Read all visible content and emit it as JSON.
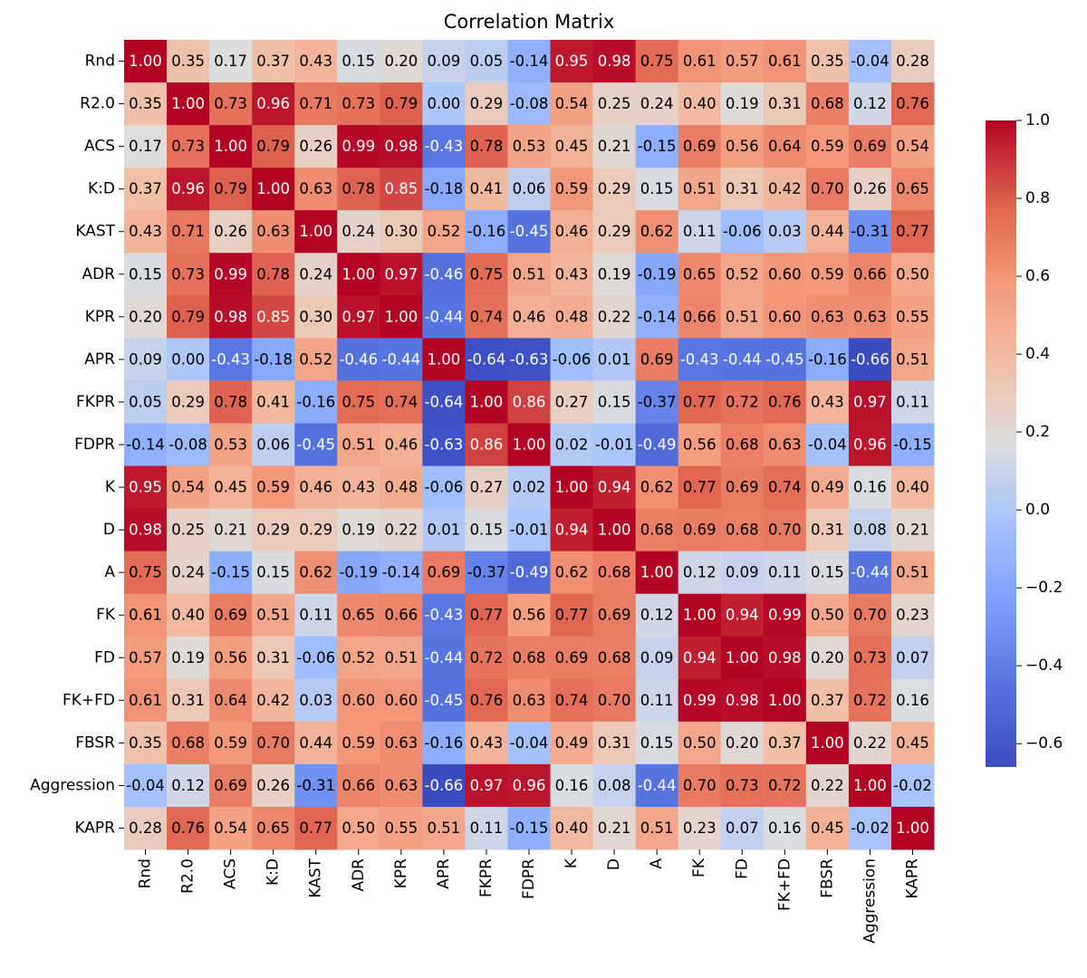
{
  "chart_data": {
    "type": "heatmap",
    "title": "Correlation Matrix",
    "categories": [
      "Rnd",
      "R2.0",
      "ACS",
      "K:D",
      "KAST",
      "ADR",
      "KPR",
      "APR",
      "FKPR",
      "FDPR",
      "K",
      "D",
      "A",
      "FK",
      "FD",
      "FK+FD",
      "FBSR",
      "Aggression",
      "KAPR"
    ],
    "values": [
      [
        1.0,
        0.35,
        0.17,
        0.37,
        0.43,
        0.15,
        0.2,
        0.09,
        0.05,
        -0.14,
        0.95,
        0.98,
        0.75,
        0.61,
        0.57,
        0.61,
        0.35,
        -0.04,
        0.28
      ],
      [
        0.35,
        1.0,
        0.73,
        0.96,
        0.71,
        0.73,
        0.79,
        0.0,
        0.29,
        -0.08,
        0.54,
        0.25,
        0.24,
        0.4,
        0.19,
        0.31,
        0.68,
        0.12,
        0.76
      ],
      [
        0.17,
        0.73,
        1.0,
        0.79,
        0.26,
        0.99,
        0.98,
        -0.43,
        0.78,
        0.53,
        0.45,
        0.21,
        -0.15,
        0.69,
        0.56,
        0.64,
        0.59,
        0.69,
        0.54
      ],
      [
        0.37,
        0.96,
        0.79,
        1.0,
        0.63,
        0.78,
        0.85,
        -0.18,
        0.41,
        0.06,
        0.59,
        0.29,
        0.15,
        0.51,
        0.31,
        0.42,
        0.7,
        0.26,
        0.65
      ],
      [
        0.43,
        0.71,
        0.26,
        0.63,
        1.0,
        0.24,
        0.3,
        0.52,
        -0.16,
        -0.45,
        0.46,
        0.29,
        0.62,
        0.11,
        -0.06,
        0.03,
        0.44,
        -0.31,
        0.77
      ],
      [
        0.15,
        0.73,
        0.99,
        0.78,
        0.24,
        1.0,
        0.97,
        -0.46,
        0.75,
        0.51,
        0.43,
        0.19,
        -0.19,
        0.65,
        0.52,
        0.6,
        0.59,
        0.66,
        0.5
      ],
      [
        0.2,
        0.79,
        0.98,
        0.85,
        0.3,
        0.97,
        1.0,
        -0.44,
        0.74,
        0.46,
        0.48,
        0.22,
        -0.14,
        0.66,
        0.51,
        0.6,
        0.63,
        0.63,
        0.55
      ],
      [
        0.09,
        0.0,
        -0.43,
        -0.18,
        0.52,
        -0.46,
        -0.44,
        1.0,
        -0.64,
        -0.63,
        -0.06,
        0.01,
        0.69,
        -0.43,
        -0.44,
        -0.45,
        -0.16,
        -0.66,
        0.51
      ],
      [
        0.05,
        0.29,
        0.78,
        0.41,
        -0.16,
        0.75,
        0.74,
        -0.64,
        1.0,
        0.86,
        0.27,
        0.15,
        -0.37,
        0.77,
        0.72,
        0.76,
        0.43,
        0.97,
        0.11
      ],
      [
        -0.14,
        -0.08,
        0.53,
        0.06,
        -0.45,
        0.51,
        0.46,
        -0.63,
        0.86,
        1.0,
        0.02,
        -0.01,
        -0.49,
        0.56,
        0.68,
        0.63,
        -0.04,
        0.96,
        -0.15
      ],
      [
        0.95,
        0.54,
        0.45,
        0.59,
        0.46,
        0.43,
        0.48,
        -0.06,
        0.27,
        0.02,
        1.0,
        0.94,
        0.62,
        0.77,
        0.69,
        0.74,
        0.49,
        0.16,
        0.4
      ],
      [
        0.98,
        0.25,
        0.21,
        0.29,
        0.29,
        0.19,
        0.22,
        0.01,
        0.15,
        -0.01,
        0.94,
        1.0,
        0.68,
        0.69,
        0.68,
        0.7,
        0.31,
        0.08,
        0.21
      ],
      [
        0.75,
        0.24,
        -0.15,
        0.15,
        0.62,
        -0.19,
        -0.14,
        0.69,
        -0.37,
        -0.49,
        0.62,
        0.68,
        1.0,
        0.12,
        0.09,
        0.11,
        0.15,
        -0.44,
        0.51
      ],
      [
        0.61,
        0.4,
        0.69,
        0.51,
        0.11,
        0.65,
        0.66,
        -0.43,
        0.77,
        0.56,
        0.77,
        0.69,
        0.12,
        1.0,
        0.94,
        0.99,
        0.5,
        0.7,
        0.23
      ],
      [
        0.57,
        0.19,
        0.56,
        0.31,
        -0.06,
        0.52,
        0.51,
        -0.44,
        0.72,
        0.68,
        0.69,
        0.68,
        0.09,
        0.94,
        1.0,
        0.98,
        0.2,
        0.73,
        0.07
      ],
      [
        0.61,
        0.31,
        0.64,
        0.42,
        0.03,
        0.6,
        0.6,
        -0.45,
        0.76,
        0.63,
        0.74,
        0.7,
        0.11,
        0.99,
        0.98,
        1.0,
        0.37,
        0.72,
        0.16
      ],
      [
        0.35,
        0.68,
        0.59,
        0.7,
        0.44,
        0.59,
        0.63,
        -0.16,
        0.43,
        -0.04,
        0.49,
        0.31,
        0.15,
        0.5,
        0.2,
        0.37,
        1.0,
        0.22,
        0.45
      ],
      [
        -0.04,
        0.12,
        0.69,
        0.26,
        -0.31,
        0.66,
        0.63,
        -0.66,
        0.97,
        0.96,
        0.16,
        0.08,
        -0.44,
        0.7,
        0.73,
        0.72,
        0.22,
        1.0,
        -0.02
      ],
      [
        0.28,
        0.76,
        0.54,
        0.65,
        0.77,
        0.5,
        0.55,
        0.51,
        0.11,
        -0.15,
        0.4,
        0.21,
        0.51,
        0.23,
        0.07,
        0.16,
        0.45,
        -0.02,
        1.0
      ]
    ],
    "value_labels": [
      [
        "1.00",
        "0.35",
        "0.17",
        "0.37",
        "0.43",
        "0.15",
        "0.20",
        "0.09",
        "0.05",
        "-0.14",
        "0.95",
        "0.98",
        "0.75",
        "0.61",
        "0.57",
        "0.61",
        "0.35",
        "-0.04",
        "0.28"
      ],
      [
        "0.35",
        "1.00",
        "0.73",
        "0.96",
        "0.71",
        "0.73",
        "0.79",
        "0.00",
        "0.29",
        "-0.08",
        "0.54",
        "0.25",
        "0.24",
        "0.40",
        "0.19",
        "0.31",
        "0.68",
        "0.12",
        "0.76"
      ],
      [
        "0.17",
        "0.73",
        "1.00",
        "0.79",
        "0.26",
        "0.99",
        "0.98",
        "-0.43",
        "0.78",
        "0.53",
        "0.45",
        "0.21",
        "-0.15",
        "0.69",
        "0.56",
        "0.64",
        "0.59",
        "0.69",
        "0.54"
      ],
      [
        "0.37",
        "0.96",
        "0.79",
        "1.00",
        "0.63",
        "0.78",
        "0.85",
        "-0.18",
        "0.41",
        "0.06",
        "0.59",
        "0.29",
        "0.15",
        "0.51",
        "0.31",
        "0.42",
        "0.70",
        "0.26",
        "0.65"
      ],
      [
        "0.43",
        "0.71",
        "0.26",
        "0.63",
        "1.00",
        "0.24",
        "0.30",
        "0.52",
        "-0.16",
        "-0.45",
        "0.46",
        "0.29",
        "0.62",
        "0.11",
        "-0.06",
        "0.03",
        "0.44",
        "-0.31",
        "0.77"
      ],
      [
        "0.15",
        "0.73",
        "0.99",
        "0.78",
        "0.24",
        "1.00",
        "0.97",
        "-0.46",
        "0.75",
        "0.51",
        "0.43",
        "0.19",
        "-0.19",
        "0.65",
        "0.52",
        "0.60",
        "0.59",
        "0.66",
        "0.50"
      ],
      [
        "0.20",
        "0.79",
        "0.98",
        "0.85",
        "0.30",
        "0.97",
        "1.00",
        "-0.44",
        "0.74",
        "0.46",
        "0.48",
        "0.22",
        "-0.14",
        "0.66",
        "0.51",
        "0.60",
        "0.63",
        "0.63",
        "0.55"
      ],
      [
        "0.09",
        "0.00",
        "-0.43",
        "-0.18",
        "0.52",
        "-0.46",
        "-0.44",
        "1.00",
        "-0.64",
        "-0.63",
        "-0.06",
        "0.01",
        "0.69",
        "-0.43",
        "-0.44",
        "-0.45",
        "-0.16",
        "-0.66",
        "0.51"
      ],
      [
        "0.05",
        "0.29",
        "0.78",
        "0.41",
        "-0.16",
        "0.75",
        "0.74",
        "-0.64",
        "1.00",
        "0.86",
        "0.27",
        "0.15",
        "-0.37",
        "0.77",
        "0.72",
        "0.76",
        "0.43",
        "0.97",
        "0.11"
      ],
      [
        "-0.14",
        "-0.08",
        "0.53",
        "0.06",
        "-0.45",
        "0.51",
        "0.46",
        "-0.63",
        "0.86",
        "1.00",
        "0.02",
        "-0.01",
        "-0.49",
        "0.56",
        "0.68",
        "0.63",
        "-0.04",
        "0.96",
        "-0.15"
      ],
      [
        "0.95",
        "0.54",
        "0.45",
        "0.59",
        "0.46",
        "0.43",
        "0.48",
        "-0.06",
        "0.27",
        "0.02",
        "1.00",
        "0.94",
        "0.62",
        "0.77",
        "0.69",
        "0.74",
        "0.49",
        "0.16",
        "0.40"
      ],
      [
        "0.98",
        "0.25",
        "0.21",
        "0.29",
        "0.29",
        "0.19",
        "0.22",
        "0.01",
        "0.15",
        "-0.01",
        "0.94",
        "1.00",
        "0.68",
        "0.69",
        "0.68",
        "0.70",
        "0.31",
        "0.08",
        "0.21"
      ],
      [
        "0.75",
        "0.24",
        "-0.15",
        "0.15",
        "0.62",
        "-0.19",
        "-0.14",
        "0.69",
        "-0.37",
        "-0.49",
        "0.62",
        "0.68",
        "1.00",
        "0.12",
        "0.09",
        "0.11",
        "0.15",
        "-0.44",
        "0.51"
      ],
      [
        "0.61",
        "0.40",
        "0.69",
        "0.51",
        "0.11",
        "0.65",
        "0.66",
        "-0.43",
        "0.77",
        "0.56",
        "0.77",
        "0.69",
        "0.12",
        "1.00",
        "0.94",
        "0.99",
        "0.50",
        "0.70",
        "0.23"
      ],
      [
        "0.57",
        "0.19",
        "0.56",
        "0.31",
        "-0.06",
        "0.52",
        "0.51",
        "-0.44",
        "0.72",
        "0.68",
        "0.69",
        "0.68",
        "0.09",
        "0.94",
        "1.00",
        "0.98",
        "0.20",
        "0.73",
        "0.07"
      ],
      [
        "0.61",
        "0.31",
        "0.64",
        "0.42",
        "0.03",
        "0.60",
        "0.60",
        "-0.45",
        "0.76",
        "0.63",
        "0.74",
        "0.70",
        "0.11",
        "0.99",
        "0.98",
        "1.00",
        "0.37",
        "0.72",
        "0.16"
      ],
      [
        "0.35",
        "0.68",
        "0.59",
        "0.70",
        "0.44",
        "0.59",
        "0.63",
        "-0.16",
        "0.43",
        "-0.04",
        "0.49",
        "0.31",
        "0.15",
        "0.50",
        "0.20",
        "0.37",
        "1.00",
        "0.22",
        "0.45"
      ],
      [
        "-0.04",
        "0.12",
        "0.69",
        "0.26",
        "-0.31",
        "0.66",
        "0.63",
        "-0.66",
        "0.97",
        "0.96",
        "0.16",
        "0.08",
        "-0.44",
        "0.70",
        "0.73",
        "0.72",
        "0.22",
        "1.00",
        "-0.02"
      ],
      [
        "0.28",
        "0.76",
        "0.54",
        "0.65",
        "0.77",
        "0.50",
        "0.55",
        "0.51",
        "0.11",
        "-0.15",
        "0.40",
        "0.21",
        "0.51",
        "0.23",
        "0.07",
        "0.16",
        "0.45",
        "-0.02",
        "1.00"
      ]
    ],
    "colormap": [
      "#3b4cc0",
      "#5572df",
      "#7b9ff9",
      "#a5c1fe",
      "#dddddd",
      "#f2bda4",
      "#f49a7b",
      "#de604d",
      "#b40426"
    ],
    "clim": [
      -0.66,
      1.0
    ],
    "cticks": [
      {
        "value": -0.6,
        "label": "−0.6"
      },
      {
        "value": -0.4,
        "label": "−0.4"
      },
      {
        "value": -0.2,
        "label": "−0.2"
      },
      {
        "value": 0.0,
        "label": "0.0"
      },
      {
        "value": 0.2,
        "label": "0.2"
      },
      {
        "value": 0.4,
        "label": "0.4"
      },
      {
        "value": 0.6,
        "label": "0.6"
      },
      {
        "value": 0.8,
        "label": "0.8"
      },
      {
        "value": 1.0,
        "label": "1.0"
      }
    ]
  }
}
